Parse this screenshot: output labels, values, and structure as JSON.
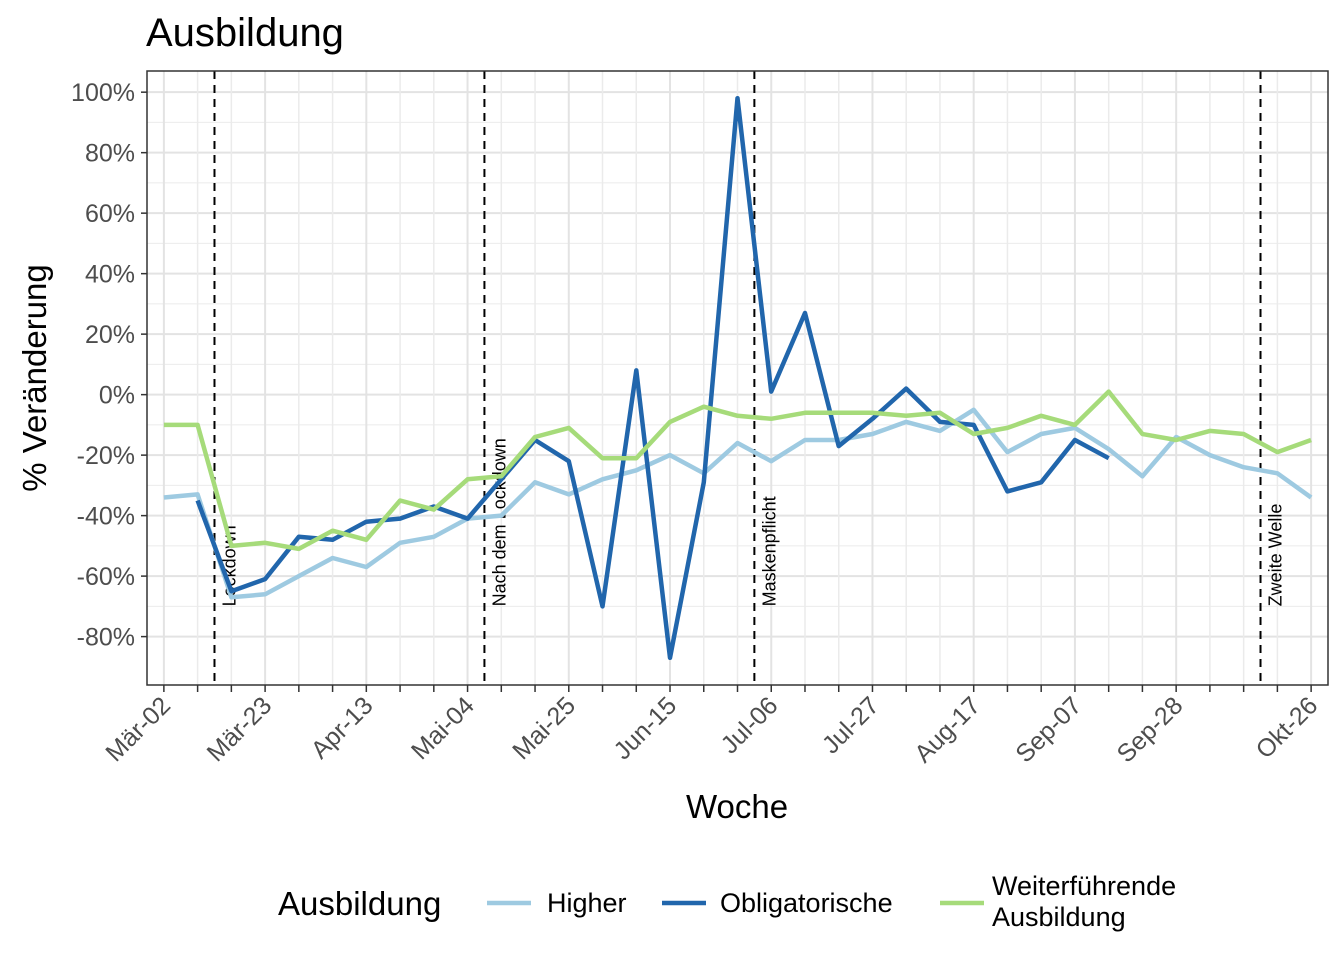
{
  "chart_data": {
    "type": "line",
    "title": "Ausbildung",
    "xlabel": "Woche",
    "ylabel": "% Veränderung",
    "x_tick_labels": [
      "Mär-02",
      "Mär-23",
      "Apr-13",
      "Mai-04",
      "Mai-25",
      "Jun-15",
      "Jul-06",
      "Jul-27",
      "Aug-17",
      "Sep-07",
      "Sep-28",
      "Okt-26"
    ],
    "x_tick_weeks": [
      0,
      3,
      6,
      9,
      12,
      15,
      18,
      21,
      24,
      27,
      30,
      34
    ],
    "x_range_weeks": [
      -0.5,
      34.5
    ],
    "y_ticks": [
      100,
      80,
      60,
      40,
      20,
      0,
      -20,
      -40,
      -60,
      -80
    ],
    "y_tick_labels": [
      "100%",
      "80%",
      "60%",
      "40%",
      "20%",
      "0%",
      "-20%",
      "-40%",
      "-60%",
      "-80%"
    ],
    "ylim": [
      -96,
      107
    ],
    "grid": true,
    "legend": {
      "title": "Ausbildung",
      "position": "bottom",
      "entries": [
        {
          "label": "Higher",
          "color": "#9ecae1"
        },
        {
          "label": "Obligatorische",
          "color": "#2166ac"
        },
        {
          "label": [
            "Weiterführende",
            "Ausbildung"
          ],
          "color": "#a6db7a"
        }
      ]
    },
    "events": [
      {
        "week": 1.5,
        "label": "Lockdown"
      },
      {
        "week": 9.5,
        "label": "Nach dem Lockdown"
      },
      {
        "week": 17.5,
        "label": "Maskenpflicht"
      },
      {
        "week": 32.5,
        "label": "Zweite Welle"
      }
    ],
    "series": [
      {
        "name": "Higher",
        "color": "#9ecae1",
        "x": [
          0,
          1,
          2,
          3,
          4,
          5,
          6,
          7,
          8,
          9,
          10,
          11,
          12,
          13,
          14,
          15,
          16,
          17,
          18,
          19,
          20,
          21,
          22,
          23,
          24,
          25,
          26,
          27,
          28,
          29,
          30,
          31,
          32,
          33,
          34
        ],
        "values": [
          -34,
          -33,
          -67,
          -66,
          -60,
          -54,
          -57,
          -49,
          -47,
          -41,
          -40,
          -29,
          -33,
          -28,
          -25,
          -20,
          -26,
          -16,
          -22,
          -15,
          -15,
          -13,
          -9,
          -12,
          -5,
          -19,
          -13,
          -11,
          -18,
          -27,
          -14,
          -20,
          -24,
          -26,
          -34
        ]
      },
      {
        "name": "Obligatorische",
        "color": "#2166ac",
        "x": [
          1,
          2,
          3,
          4,
          5,
          6,
          7,
          8,
          9,
          10,
          11,
          12,
          13,
          14,
          15,
          16,
          17,
          18,
          19,
          20,
          21,
          22,
          23,
          24,
          25,
          26,
          27,
          28
        ],
        "values": [
          -35,
          -65,
          -61,
          -47,
          -48,
          -42,
          -41,
          -37,
          -41,
          -28,
          -15,
          -22,
          -70,
          8,
          -87,
          -29,
          98,
          1,
          27,
          -17,
          -8,
          2,
          -9,
          -10,
          -32,
          -29,
          -15,
          -21
        ]
      },
      {
        "name": "Weiterführende Ausbildung",
        "color": "#a6db7a",
        "x": [
          0,
          1,
          2,
          3,
          4,
          5,
          6,
          7,
          8,
          9,
          10,
          11,
          12,
          13,
          14,
          15,
          16,
          17,
          18,
          19,
          20,
          21,
          22,
          23,
          24,
          25,
          26,
          27,
          28,
          29,
          30,
          31,
          32,
          33,
          34
        ],
        "values": [
          -10,
          -10,
          -50,
          -49,
          -51,
          -45,
          -48,
          -35,
          -38,
          -28,
          -27,
          -14,
          -11,
          -21,
          -21,
          -9,
          -4,
          -7,
          -8,
          -6,
          -6,
          -6,
          -7,
          -6,
          -13,
          -11,
          -7,
          -10,
          1,
          -13,
          -15,
          -12,
          -13,
          -19,
          -15
        ]
      }
    ]
  }
}
